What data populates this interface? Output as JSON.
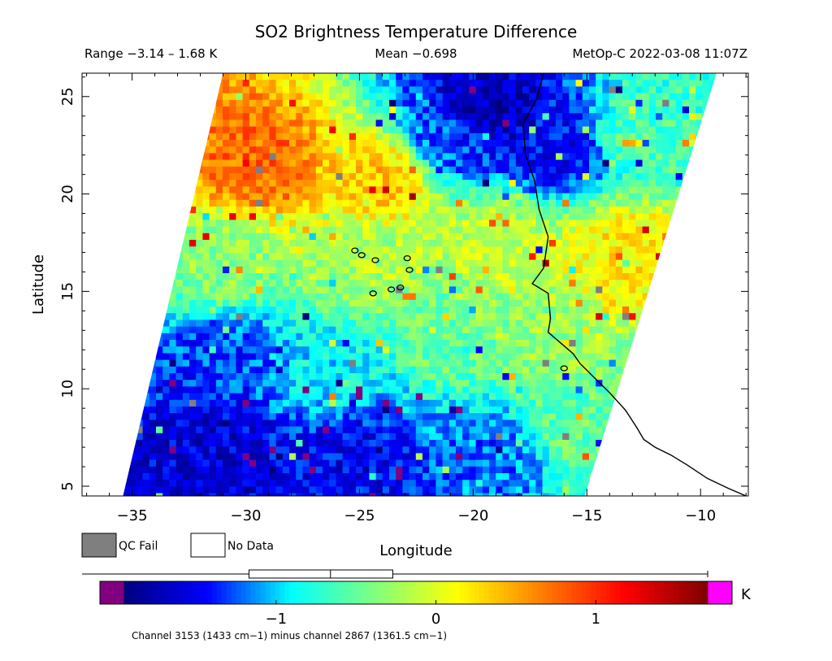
{
  "figure": {
    "title": "SO2 Brightness Temperature Difference",
    "range_text": "Range −3.14 – 1.68 K",
    "mean_text": "Mean −0.698",
    "platform_text": "MetOp-C 2022-03-08 11:07Z",
    "xlabel": "Longitude",
    "ylabel": "Latitude",
    "footnote": "Channel 3153 (1433 cm−1) minus channel 2867 (1361.5 cm−1)"
  },
  "legend": {
    "qc_fail_label": "QC Fail",
    "qc_fail_color": "#7f7f7f",
    "no_data_label": "No Data",
    "no_data_color": "#ffffff"
  },
  "colorbar": {
    "unit_label": "K",
    "range": [
      -1.95,
      1.7
    ],
    "ticks": [
      {
        "value": -1,
        "label": "−1"
      },
      {
        "value": 0,
        "label": "0"
      },
      {
        "value": 1,
        "label": "1"
      }
    ],
    "underflow_color": "#800080",
    "overflow_color": "#ff00ff",
    "colormap": [
      "#00007f",
      "#0000ff",
      "#00ffff",
      "#7fff7f",
      "#ffff00",
      "#ff7f00",
      "#ff0000",
      "#7f0000"
    ],
    "boxplot": {
      "whisker_low": -1.95,
      "q1": -1.17,
      "median": -0.66,
      "q3": -0.27,
      "whisker_high": 1.7
    }
  },
  "chart_data": {
    "type": "heatmap",
    "title": "SO2 Brightness Temperature Difference",
    "xlabel": "Longitude",
    "ylabel": "Latitude",
    "xlim": [
      -37.2,
      -7.9
    ],
    "ylim": [
      4.5,
      26.2
    ],
    "x_ticks": [
      {
        "value": -35,
        "label": "−35"
      },
      {
        "value": -30,
        "label": "−30"
      },
      {
        "value": -25,
        "label": "−25"
      },
      {
        "value": -20,
        "label": "−20"
      },
      {
        "value": -15,
        "label": "−15"
      },
      {
        "value": -10,
        "label": "−10"
      }
    ],
    "y_ticks": [
      {
        "value": 5,
        "label": "5"
      },
      {
        "value": 10,
        "label": "10"
      },
      {
        "value": 15,
        "label": "15"
      },
      {
        "value": 20,
        "label": "20"
      },
      {
        "value": 25,
        "label": "25"
      }
    ],
    "units": "K",
    "value_range": [
      -3.14,
      1.68
    ],
    "mean": -0.698,
    "swath_corners_lonlat": [
      [
        -31.0,
        26.2
      ],
      [
        -9.3,
        26.2
      ],
      [
        -15.1,
        4.5
      ],
      [
        -35.4,
        4.5
      ]
    ],
    "field_regions": [
      {
        "lon": -29.5,
        "lat": 21.5,
        "value": 0.75
      },
      {
        "lon": -24.0,
        "lat": 20.8,
        "value": 0.35
      },
      {
        "lon": -31.0,
        "lat": 16.5,
        "value": -0.35
      },
      {
        "lon": -24.5,
        "lat": 16.5,
        "value": -0.2
      },
      {
        "lon": -19.0,
        "lat": 17.5,
        "value": -0.1
      },
      {
        "lon": -19.5,
        "lat": 24.2,
        "value": -1.75
      },
      {
        "lon": -21.0,
        "lat": 23.0,
        "value": -1.3
      },
      {
        "lon": -16.0,
        "lat": 22.5,
        "value": -1.5
      },
      {
        "lon": -13.0,
        "lat": 23.0,
        "value": -0.6
      },
      {
        "lon": -13.5,
        "lat": 17.0,
        "value": 0.2
      },
      {
        "lon": -31.0,
        "lat": 11.5,
        "value": -1.3
      },
      {
        "lon": -26.0,
        "lat": 11.0,
        "value": -0.9
      },
      {
        "lon": -21.0,
        "lat": 13.0,
        "value": -0.45
      },
      {
        "lon": -16.5,
        "lat": 12.5,
        "value": -0.3
      },
      {
        "lon": -31.5,
        "lat": 7.0,
        "value": -1.6
      },
      {
        "lon": -25.0,
        "lat": 6.5,
        "value": -1.5
      },
      {
        "lon": -19.0,
        "lat": 6.5,
        "value": -1.2
      },
      {
        "lon": -15.5,
        "lat": 8.0,
        "value": -0.5
      }
    ],
    "coastline_lonlat": [
      [
        -16.9,
        26.2
      ],
      [
        -17.2,
        24.9
      ],
      [
        -17.8,
        23.6
      ],
      [
        -17.7,
        22.0
      ],
      [
        -17.3,
        20.7
      ],
      [
        -17.1,
        19.2
      ],
      [
        -16.7,
        17.8
      ],
      [
        -16.9,
        16.2
      ],
      [
        -17.4,
        15.4
      ],
      [
        -16.7,
        14.9
      ],
      [
        -16.6,
        13.6
      ],
      [
        -16.7,
        12.9
      ],
      [
        -15.6,
        11.8
      ],
      [
        -15.3,
        11.3
      ],
      [
        -14.7,
        10.6
      ],
      [
        -14.0,
        9.8
      ],
      [
        -13.3,
        8.9
      ],
      [
        -12.8,
        8.0
      ],
      [
        -12.5,
        7.4
      ],
      [
        -12.0,
        7.0
      ],
      [
        -11.3,
        6.6
      ],
      [
        -10.6,
        6.1
      ],
      [
        -9.7,
        5.4
      ],
      [
        -8.8,
        4.9
      ],
      [
        -8.0,
        4.5
      ]
    ],
    "islands_lonlat": [
      {
        "name": "Santo Antao",
        "lon": -25.2,
        "lat": 17.1
      },
      {
        "name": "Sao Vicente",
        "lon": -24.9,
        "lat": 16.86
      },
      {
        "name": "Sao Nicolau",
        "lon": -24.3,
        "lat": 16.6
      },
      {
        "name": "Sal",
        "lon": -22.9,
        "lat": 16.7
      },
      {
        "name": "Boa Vista",
        "lon": -22.8,
        "lat": 16.1
      },
      {
        "name": "Maio",
        "lon": -23.2,
        "lat": 15.2
      },
      {
        "name": "Santiago",
        "lon": -23.6,
        "lat": 15.1
      },
      {
        "name": "Fogo",
        "lon": -24.4,
        "lat": 14.9
      },
      {
        "name": "Bijagos",
        "lon": -16.0,
        "lat": 11.05
      }
    ]
  }
}
